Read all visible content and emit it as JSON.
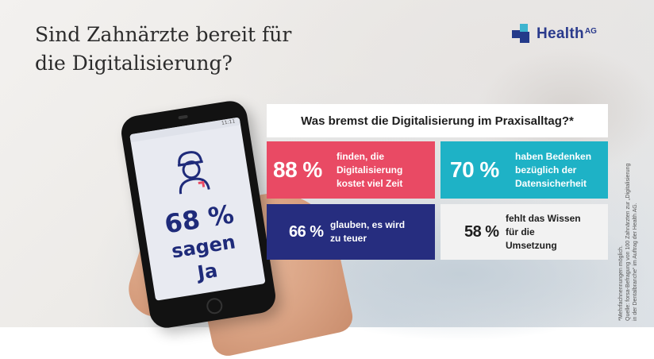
{
  "title": {
    "line1": "Sind Zahnärzte bereit für",
    "line2": "die Digitalisierung?"
  },
  "logo": {
    "name": "Health",
    "suffix": "AG"
  },
  "phone": {
    "status": "11:11",
    "percent": "68 %",
    "line2": "sagen",
    "line3": "Ja",
    "icon": "dentist-icon"
  },
  "question": "Was bremst die Digitalisierung im Praxisalltag?*",
  "stats": [
    {
      "percent": "88 %",
      "text": "finden, die Digitalisierung kostet viel Zeit",
      "color": "#e94a64"
    },
    {
      "percent": "70 %",
      "text": "haben Bedenken bezüglich der Datensicherheit",
      "color": "#1eb2c6"
    },
    {
      "percent": "66 %",
      "text": "glauben, es wird zu teuer",
      "color": "#262d7f"
    },
    {
      "percent": "58 %",
      "text": "fehlt das Wissen für die Umsetzung",
      "color": "#f2f2f2"
    }
  ],
  "footnote": {
    "line1": "*Mehrfachnennungen möglich.",
    "line2": "Quelle: forsa-Befragung von 100 Zahnärzten zur „Digitalisierung",
    "line3": "in der Dentalbranche“ im Auftrag der Health AG."
  }
}
